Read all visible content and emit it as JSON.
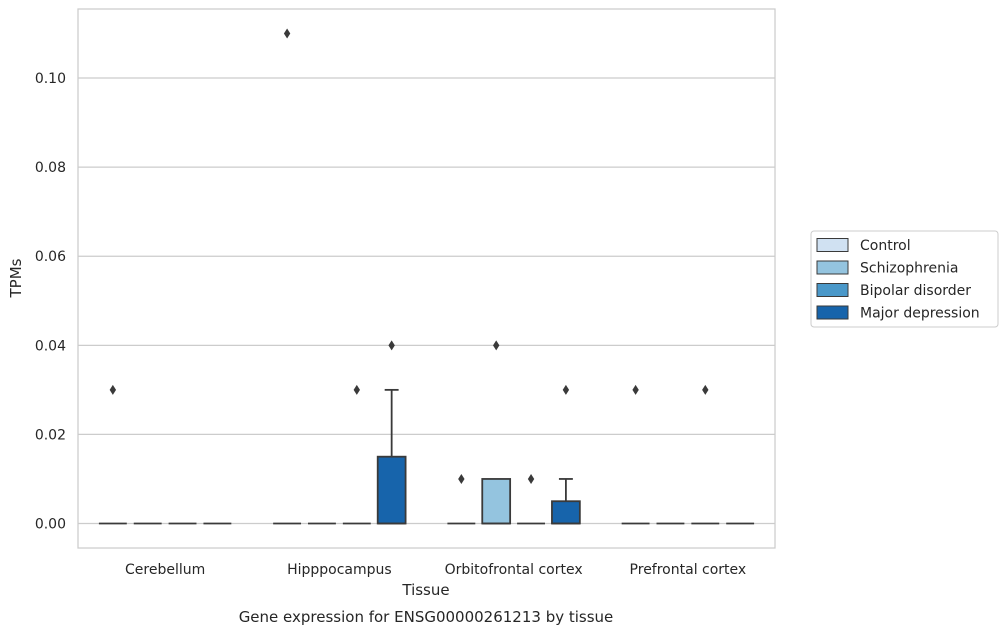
{
  "chart_data": {
    "type": "box",
    "title": "",
    "xlabel": "Tissue",
    "ylabel": "TPMs",
    "caption": "Gene expression for ENSG00000261213 by tissue",
    "categories": [
      "Cerebellum",
      "Hipppocampus",
      "Orbitofrontal cortex",
      "Prefrontal cortex"
    ],
    "yticks": [
      0.0,
      0.02,
      0.04,
      0.06,
      0.08,
      0.1
    ],
    "ytick_labels": [
      "0.00",
      "0.02",
      "0.04",
      "0.06",
      "0.08",
      "0.10"
    ],
    "ylim": [
      -0.0055,
      0.1155
    ],
    "grid": true,
    "legend_position": "right",
    "series": [
      {
        "name": "Control",
        "color": "#d0e1f2",
        "boxes": [
          {
            "q1": 0,
            "median": 0,
            "q3": 0,
            "whisker_low": 0,
            "whisker_high": 0,
            "outliers": [
              0.03
            ]
          },
          {
            "q1": 0,
            "median": 0,
            "q3": 0,
            "whisker_low": 0,
            "whisker_high": 0,
            "outliers": [
              0.11
            ]
          },
          {
            "q1": 0,
            "median": 0,
            "q3": 0,
            "whisker_low": 0,
            "whisker_high": 0,
            "outliers": [
              0.01
            ]
          },
          {
            "q1": 0,
            "median": 0,
            "q3": 0,
            "whisker_low": 0,
            "whisker_high": 0,
            "outliers": [
              0.03
            ]
          }
        ]
      },
      {
        "name": "Schizophrenia",
        "color": "#94c4df",
        "boxes": [
          {
            "q1": 0,
            "median": 0,
            "q3": 0,
            "whisker_low": 0,
            "whisker_high": 0,
            "outliers": []
          },
          {
            "q1": 0,
            "median": 0,
            "q3": 0,
            "whisker_low": 0,
            "whisker_high": 0,
            "outliers": []
          },
          {
            "q1": 0,
            "median": 0,
            "q3": 0.01,
            "whisker_low": 0,
            "whisker_high": 0.01,
            "outliers": [
              0.04
            ]
          },
          {
            "q1": 0,
            "median": 0,
            "q3": 0,
            "whisker_low": 0,
            "whisker_high": 0,
            "outliers": []
          }
        ]
      },
      {
        "name": "Bipolar disorder",
        "color": "#4a98c9",
        "boxes": [
          {
            "q1": 0,
            "median": 0,
            "q3": 0,
            "whisker_low": 0,
            "whisker_high": 0,
            "outliers": []
          },
          {
            "q1": 0,
            "median": 0,
            "q3": 0,
            "whisker_low": 0,
            "whisker_high": 0,
            "outliers": [
              0.03
            ]
          },
          {
            "q1": 0,
            "median": 0,
            "q3": 0,
            "whisker_low": 0,
            "whisker_high": 0,
            "outliers": [
              0.01
            ]
          },
          {
            "q1": 0,
            "median": 0,
            "q3": 0,
            "whisker_low": 0,
            "whisker_high": 0,
            "outliers": [
              0.03
            ]
          }
        ]
      },
      {
        "name": "Major depression",
        "color": "#1764ab",
        "boxes": [
          {
            "q1": 0,
            "median": 0,
            "q3": 0,
            "whisker_low": 0,
            "whisker_high": 0,
            "outliers": []
          },
          {
            "q1": 0,
            "median": 0,
            "q3": 0.015,
            "whisker_low": 0,
            "whisker_high": 0.03,
            "outliers": [
              0.04
            ]
          },
          {
            "q1": 0,
            "median": 0,
            "q3": 0.005,
            "whisker_low": 0,
            "whisker_high": 0.01,
            "outliers": [
              0.03
            ]
          },
          {
            "q1": 0,
            "median": 0,
            "q3": 0,
            "whisker_low": 0,
            "whisker_high": 0,
            "outliers": []
          }
        ]
      }
    ]
  }
}
